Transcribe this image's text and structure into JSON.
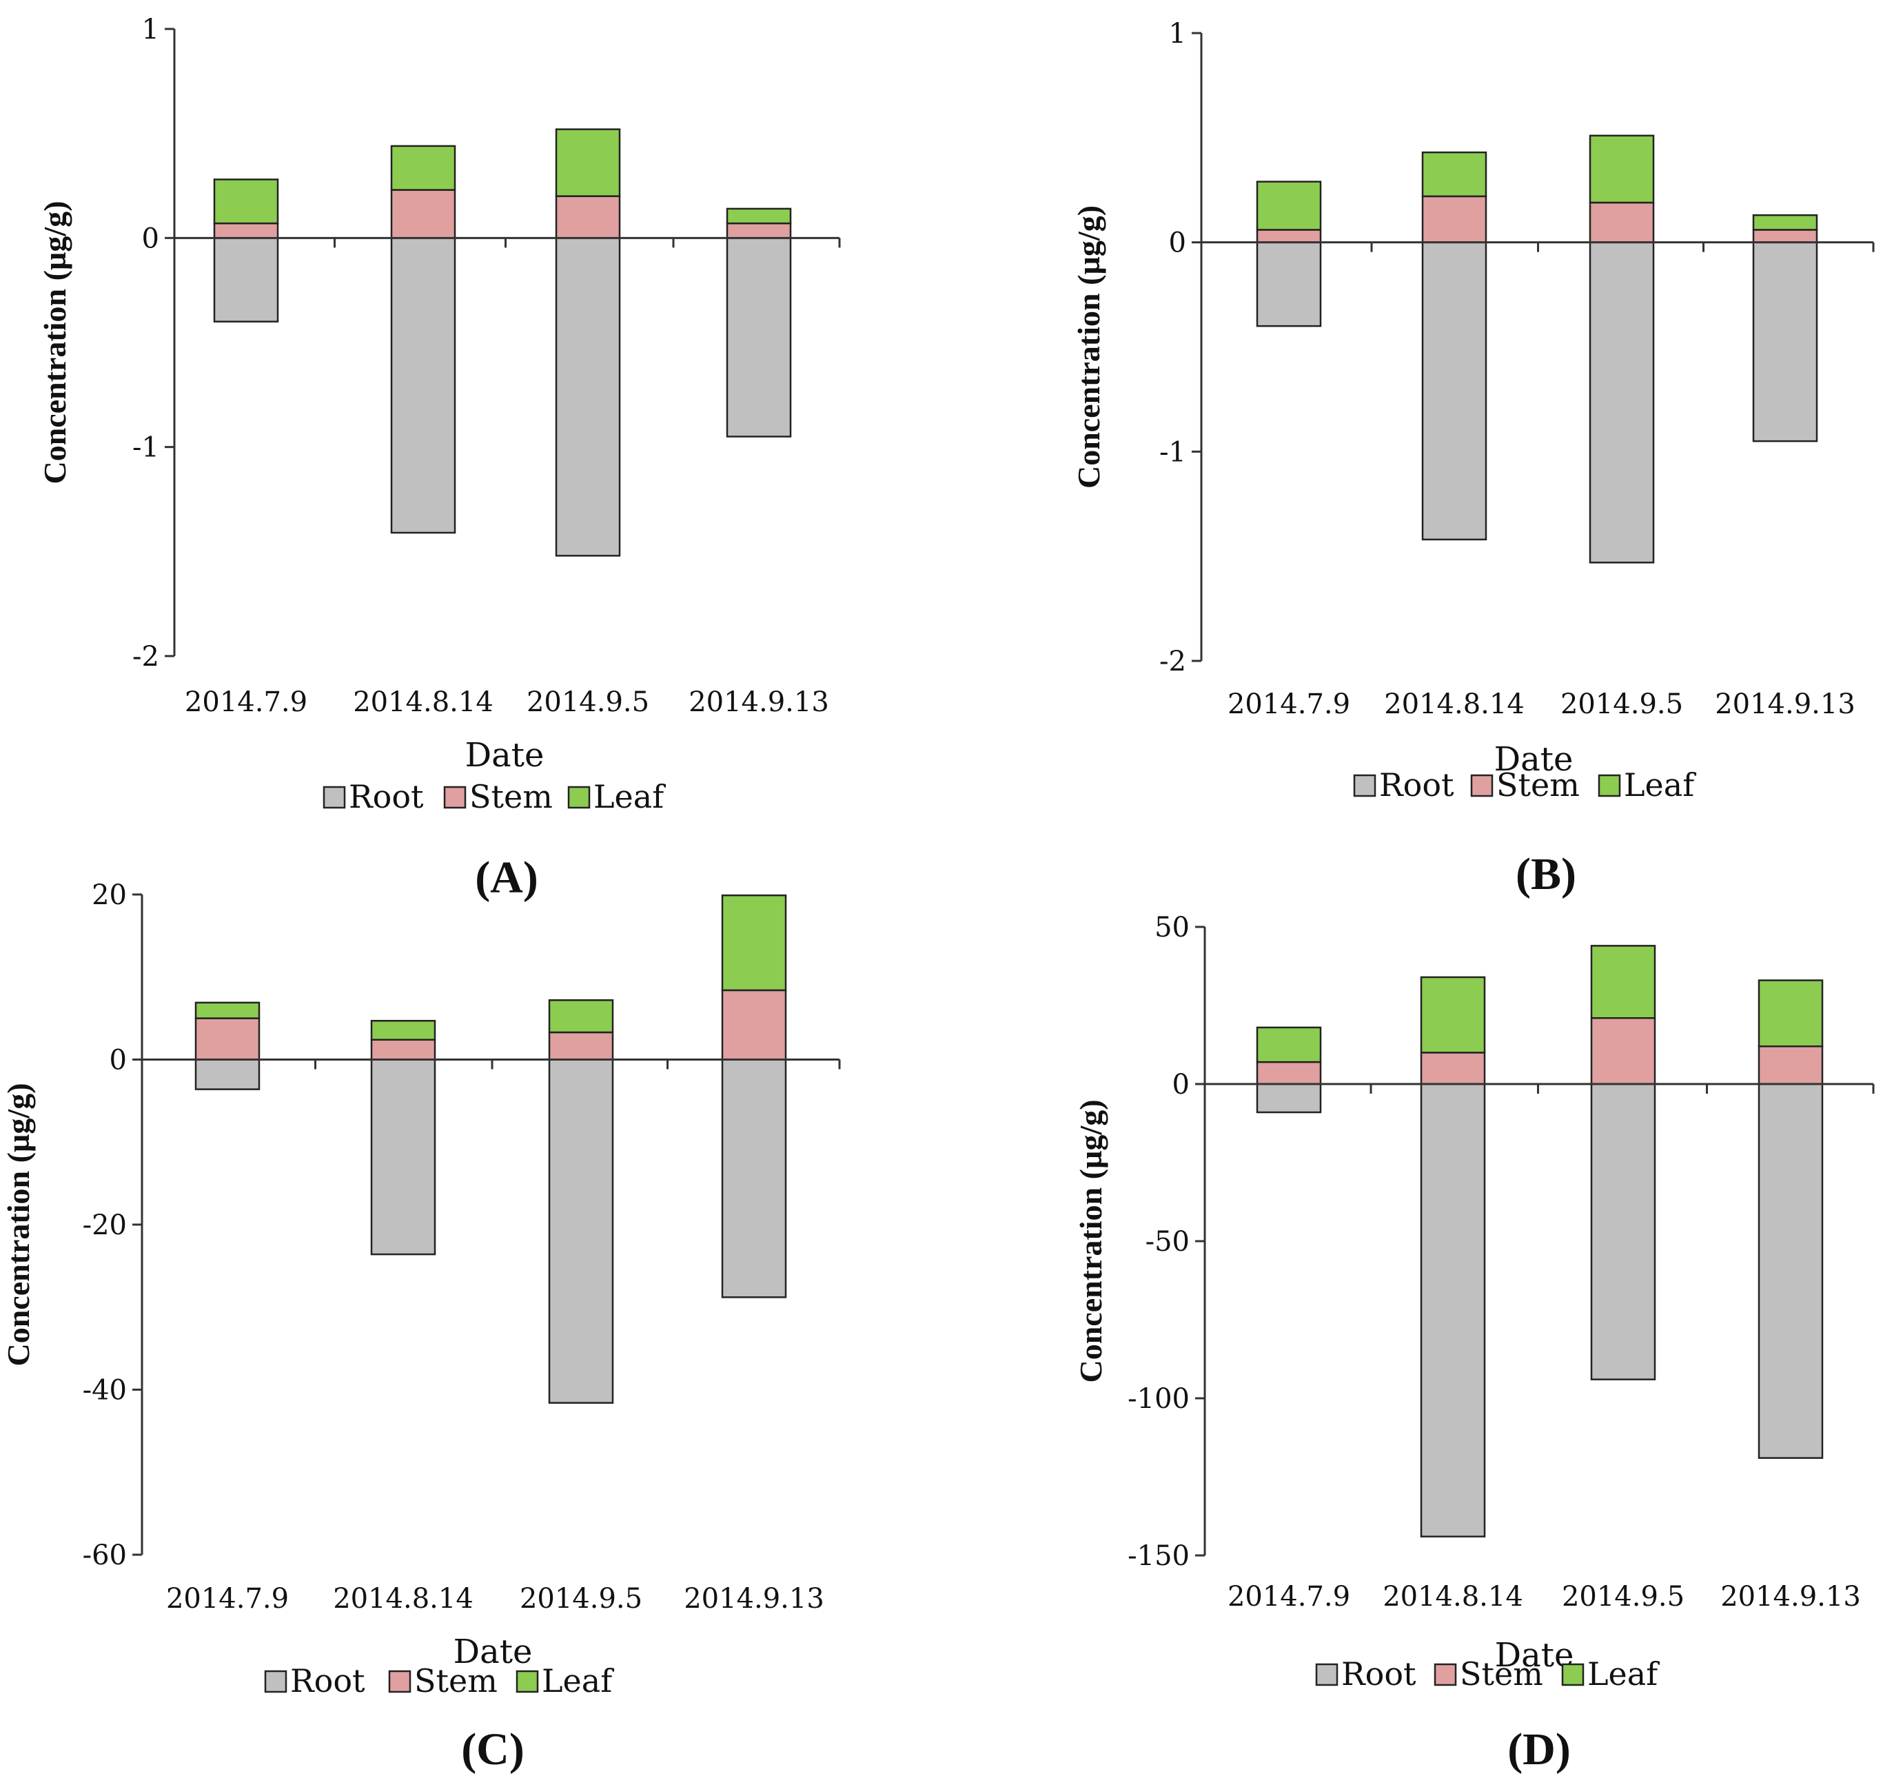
{
  "colors": {
    "root": "#c0c0c0",
    "stem": "#e0a0a0",
    "leaf": "#8ccc50",
    "axis": "#333333",
    "outline": "#222222"
  },
  "chart_data": [
    {
      "type": "bar",
      "panel": "(A)",
      "categories": [
        "2014.7.9",
        "2014.8.14",
        "2014.9.5",
        "2014.9.13"
      ],
      "series": [
        {
          "name": "Root",
          "values": [
            -0.4,
            -1.41,
            -1.52,
            -0.95
          ]
        },
        {
          "name": "Stem",
          "values": [
            0.07,
            0.23,
            0.2,
            0.07
          ]
        },
        {
          "name": "Leaf",
          "values": [
            0.21,
            0.21,
            0.32,
            0.07
          ]
        }
      ],
      "ylabel": "Concentration (µg/g)",
      "xlabel": "Date",
      "ylim": [
        -2,
        1
      ],
      "yticks": [
        1,
        0,
        -1,
        -2
      ],
      "ytick_labels": [
        "1",
        "0",
        "-1",
        "-2"
      ],
      "legend": [
        "Root",
        "Stem",
        "Leaf"
      ]
    },
    {
      "type": "bar",
      "panel": "(B)",
      "categories": [
        "2014.7.9",
        "2014.8.14",
        "2014.9.5",
        "2014.9.13"
      ],
      "series": [
        {
          "name": "Root",
          "values": [
            -0.4,
            -1.42,
            -1.53,
            -0.95
          ]
        },
        {
          "name": "Stem",
          "values": [
            0.06,
            0.22,
            0.19,
            0.06
          ]
        },
        {
          "name": "Leaf",
          "values": [
            0.23,
            0.21,
            0.32,
            0.07
          ]
        }
      ],
      "ylabel": "Concentration (µg/g)",
      "xlabel": "Date",
      "ylim": [
        -2,
        1
      ],
      "yticks": [
        1,
        0,
        -1,
        -2
      ],
      "ytick_labels": [
        "1",
        "0",
        "-1",
        "-2"
      ],
      "legend": [
        "Root",
        "Stem",
        "Leaf"
      ]
    },
    {
      "type": "bar",
      "panel": "(C)",
      "categories": [
        "2014.7.9",
        "2014.8.14",
        "2014.9.5",
        "2014.9.13"
      ],
      "series": [
        {
          "name": "Root",
          "values": [
            -3.6,
            -23.6,
            -41.6,
            -28.8
          ]
        },
        {
          "name": "Stem",
          "values": [
            5.0,
            2.4,
            3.3,
            8.4
          ]
        },
        {
          "name": "Leaf",
          "values": [
            1.9,
            2.3,
            3.9,
            11.5
          ]
        }
      ],
      "ylabel": "Concentration (µg/g)",
      "xlabel": "Date",
      "ylim": [
        -60,
        20
      ],
      "yticks": [
        20,
        0,
        -20,
        -40,
        -60
      ],
      "ytick_labels": [
        "20",
        "0",
        "-20",
        "-40",
        "-60"
      ],
      "legend": [
        "Root",
        "Stem",
        "Leaf"
      ]
    },
    {
      "type": "bar",
      "panel": "(D)",
      "categories": [
        "2014.7.9",
        "2014.8.14",
        "2014.9.5",
        "2014.9.13"
      ],
      "series": [
        {
          "name": "Root",
          "values": [
            -9,
            -144,
            -94,
            -119
          ]
        },
        {
          "name": "Stem",
          "values": [
            7,
            10,
            21,
            12
          ]
        },
        {
          "name": "Leaf",
          "values": [
            11,
            24,
            23,
            21
          ]
        }
      ],
      "ylabel": "Concentration (µg/g)",
      "xlabel": "Date",
      "ylim": [
        -150,
        50
      ],
      "yticks": [
        50,
        0,
        -50,
        -100,
        -150
      ],
      "ytick_labels": [
        "50",
        "0",
        "-50",
        "-100",
        "-150"
      ],
      "legend": [
        "Root",
        "Stem",
        "Leaf"
      ]
    }
  ]
}
